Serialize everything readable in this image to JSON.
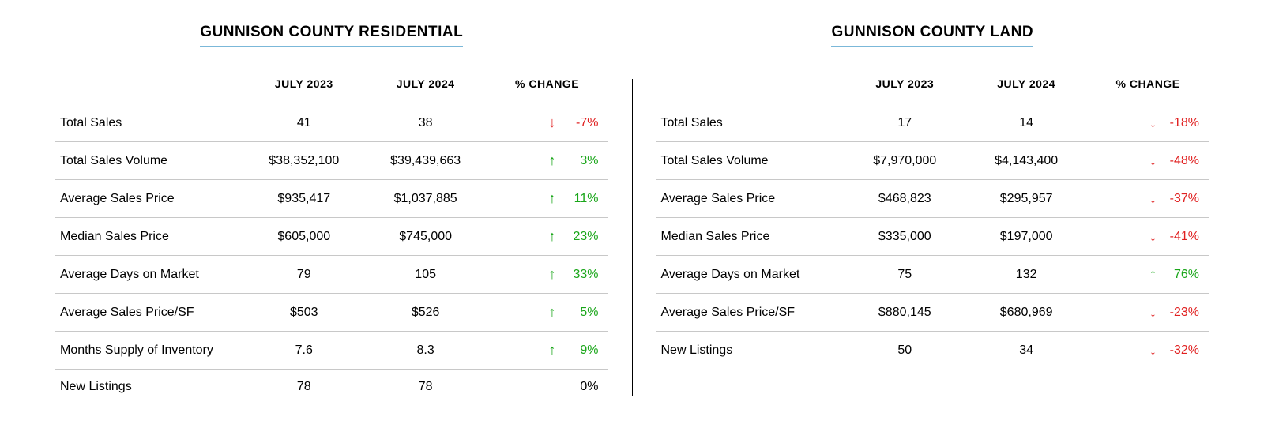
{
  "colors": {
    "up": "#1aa61a",
    "down": "#e02020",
    "neutral": "#000000",
    "title_underline": "#7bb8d9",
    "row_border": "#c8c8c8",
    "background": "#ffffff"
  },
  "headers": {
    "col1": "JULY 2023",
    "col2": "JULY 2024",
    "col3": "% CHANGE"
  },
  "panels": [
    {
      "title": "GUNNISON COUNTY RESIDENTIAL",
      "rows": [
        {
          "label": "Total Sales",
          "v1": "41",
          "v2": "38",
          "dir": "down",
          "pct": "-7%"
        },
        {
          "label": "Total Sales Volume",
          "v1": "$38,352,100",
          "v2": "$39,439,663",
          "dir": "up",
          "pct": "3%"
        },
        {
          "label": "Average Sales Price",
          "v1": "$935,417",
          "v2": "$1,037,885",
          "dir": "up",
          "pct": "11%"
        },
        {
          "label": "Median Sales Price",
          "v1": "$605,000",
          "v2": "$745,000",
          "dir": "up",
          "pct": "23%"
        },
        {
          "label": "Average Days on Market",
          "v1": "79",
          "v2": "105",
          "dir": "up",
          "pct": "33%"
        },
        {
          "label": "Average Sales Price/SF",
          "v1": "$503",
          "v2": "$526",
          "dir": "up",
          "pct": "5%"
        },
        {
          "label": "Months Supply of Inventory",
          "v1": "7.6",
          "v2": "8.3",
          "dir": "up",
          "pct": "9%"
        },
        {
          "label": "New Listings",
          "v1": "78",
          "v2": "78",
          "dir": "neutral",
          "pct": "0%"
        }
      ]
    },
    {
      "title": "GUNNISON COUNTY LAND",
      "rows": [
        {
          "label": "Total Sales",
          "v1": "17",
          "v2": "14",
          "dir": "down",
          "pct": "-18%"
        },
        {
          "label": "Total Sales Volume",
          "v1": "$7,970,000",
          "v2": "$4,143,400",
          "dir": "down",
          "pct": "-48%"
        },
        {
          "label": "Average Sales Price",
          "v1": "$468,823",
          "v2": "$295,957",
          "dir": "down",
          "pct": "-37%"
        },
        {
          "label": "Median Sales Price",
          "v1": "$335,000",
          "v2": "$197,000",
          "dir": "down",
          "pct": "-41%"
        },
        {
          "label": "Average Days on Market",
          "v1": "75",
          "v2": "132",
          "dir": "up",
          "pct": "76%"
        },
        {
          "label": "Average Sales Price/SF",
          "v1": "$880,145",
          "v2": "$680,969",
          "dir": "down",
          "pct": "-23%"
        },
        {
          "label": "New Listings",
          "v1": "50",
          "v2": "34",
          "dir": "down",
          "pct": "-32%"
        }
      ]
    }
  ]
}
